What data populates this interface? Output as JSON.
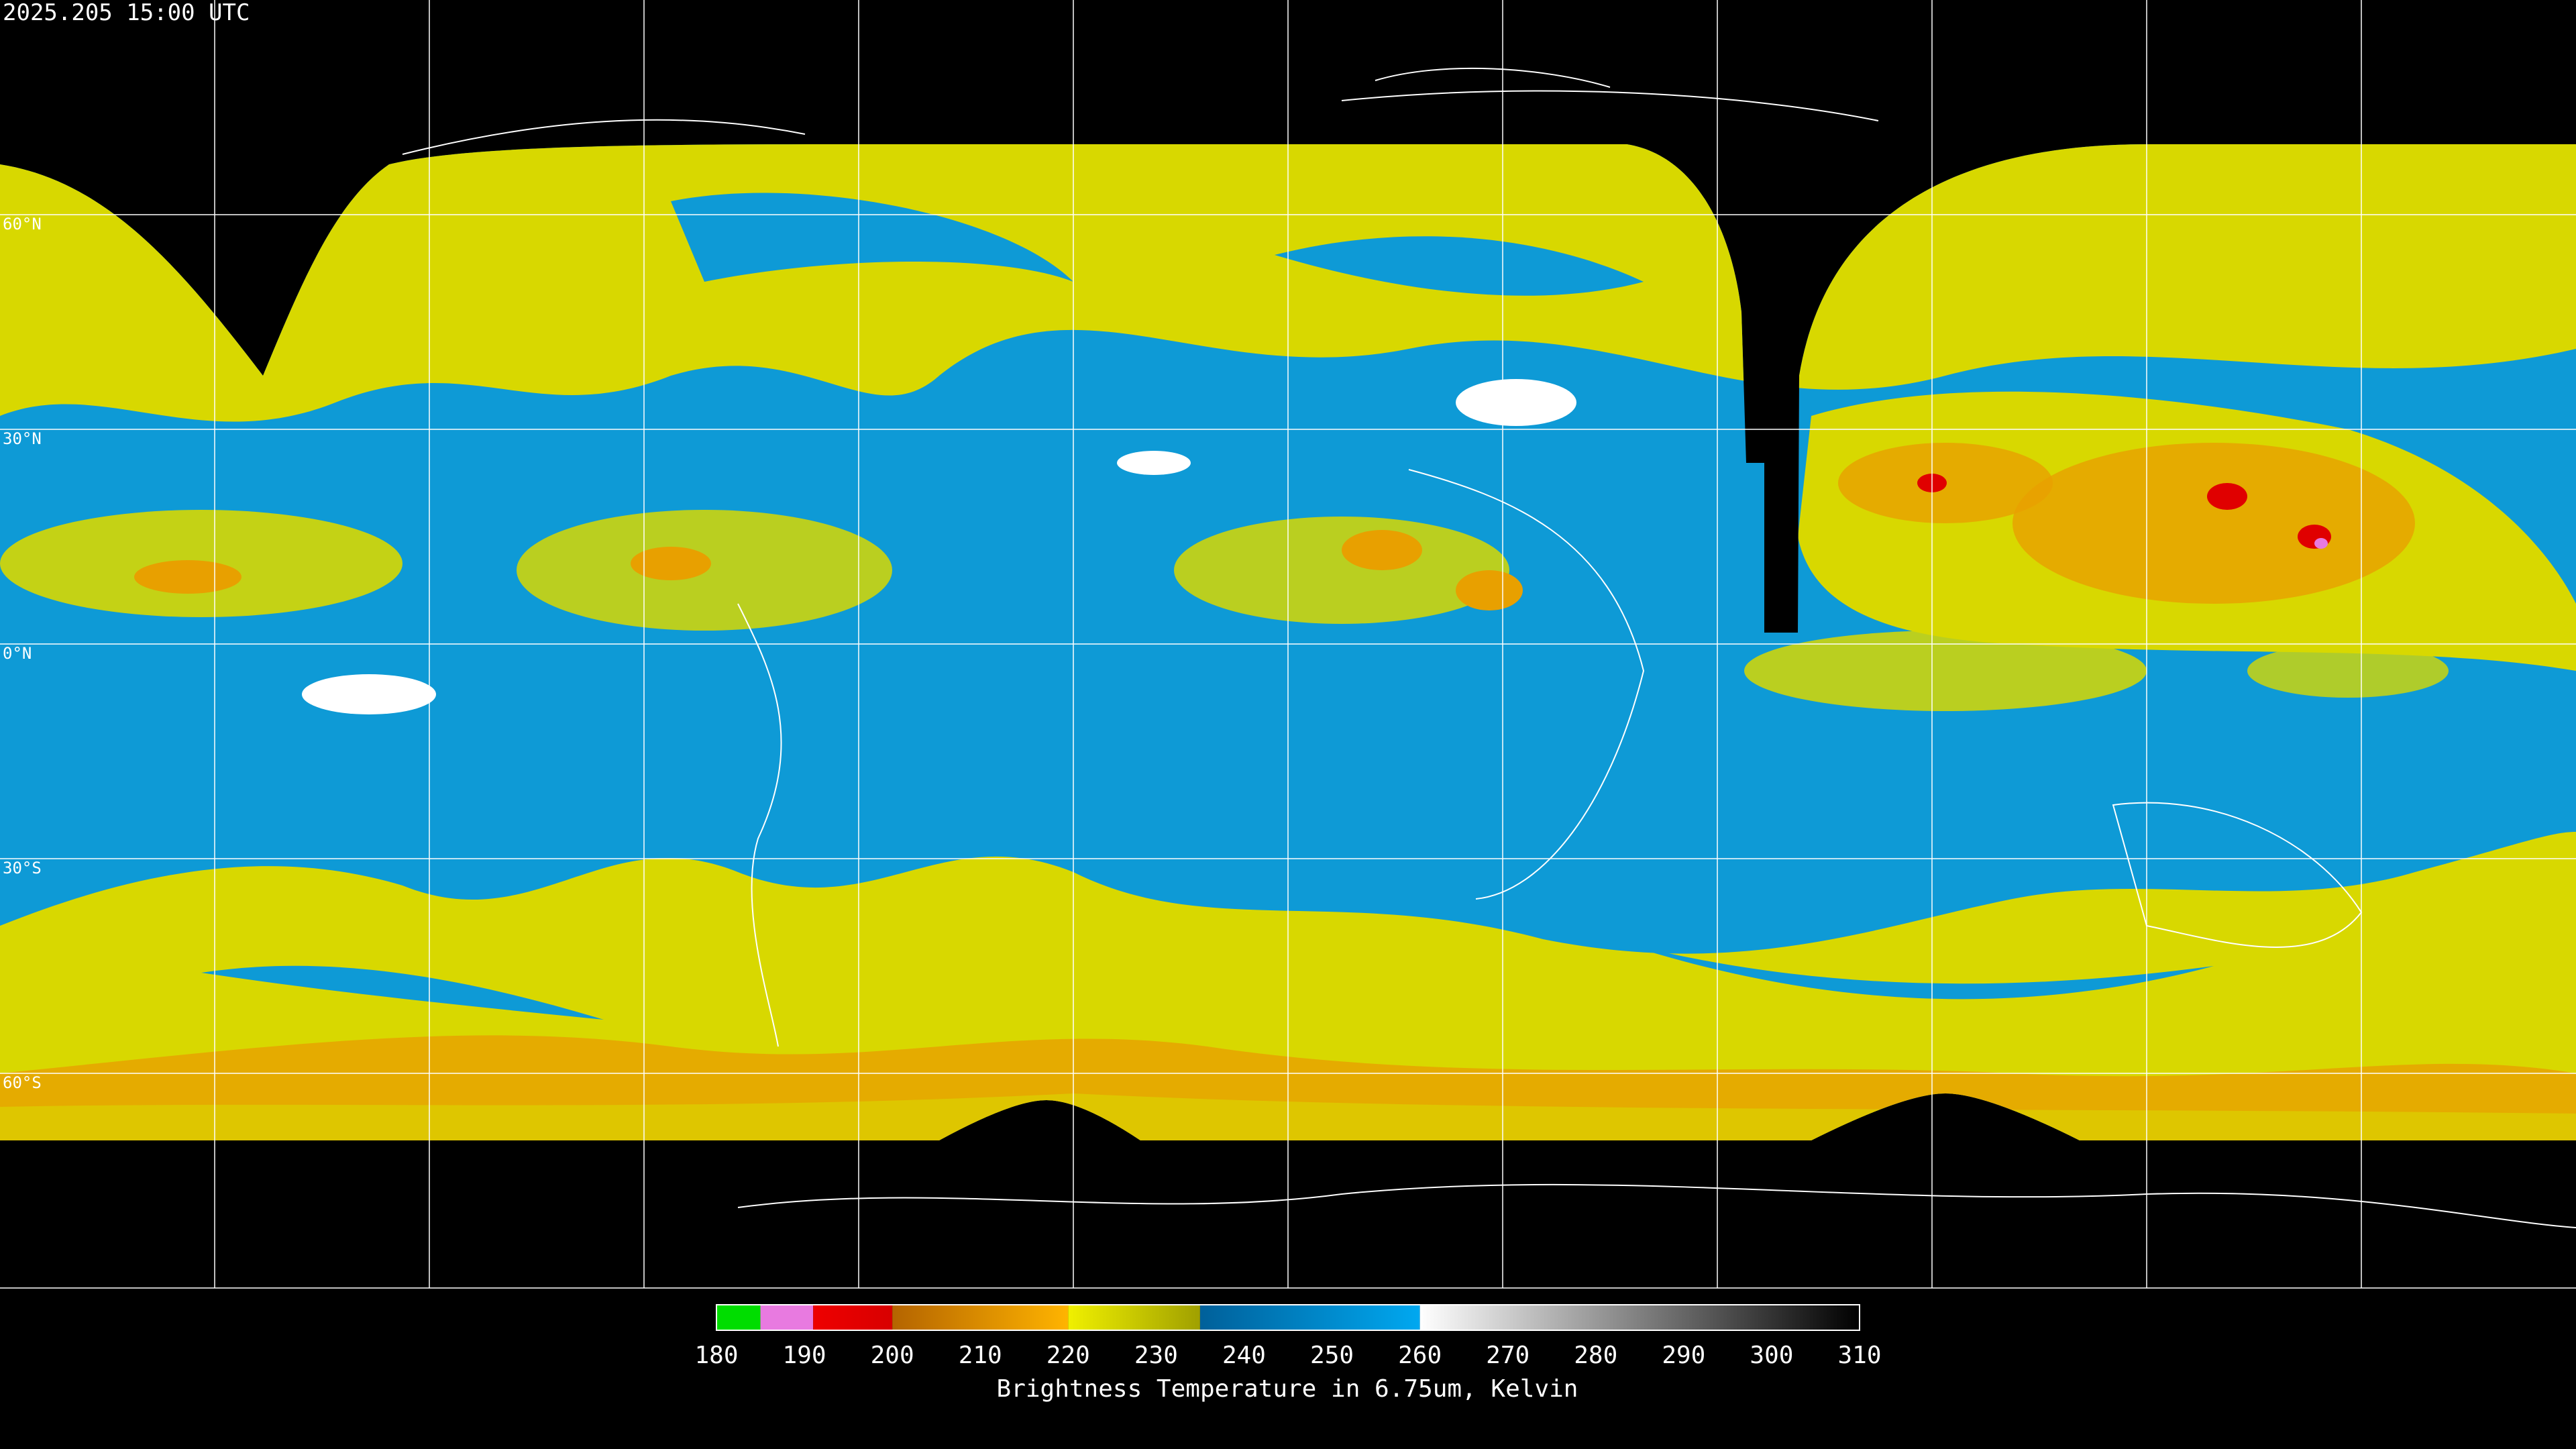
{
  "header": {
    "timestamp": "2025.205 15:00 UTC"
  },
  "map": {
    "lat_labels": [
      "60°N",
      "30°N",
      "0°N",
      "30°S",
      "60°S"
    ]
  },
  "colorbar": {
    "title": "Brightness Temperature in 6.75um, Kelvin",
    "range": [
      180,
      310
    ],
    "ticks": [
      180,
      190,
      200,
      210,
      220,
      230,
      240,
      250,
      260,
      270,
      280,
      290,
      300,
      310
    ],
    "segments": [
      {
        "from": 180,
        "to": 185,
        "color_start": "#00dd00",
        "color_end": "#00dd00"
      },
      {
        "from": 185,
        "to": 191,
        "color_start": "#e87ae0",
        "color_end": "#e87ae0"
      },
      {
        "from": 191,
        "to": 200,
        "color_start": "#ee0000",
        "color_end": "#d80000"
      },
      {
        "from": 200,
        "to": 220,
        "color_start": "#b46400",
        "color_end": "#ffb400"
      },
      {
        "from": 220,
        "to": 235,
        "color_start": "#f0f000",
        "color_end": "#a0a000"
      },
      {
        "from": 235,
        "to": 260,
        "color_start": "#00609a",
        "color_end": "#00a8f0"
      },
      {
        "from": 260,
        "to": 310,
        "color_start": "#ffffff",
        "color_end": "#000000"
      }
    ]
  }
}
